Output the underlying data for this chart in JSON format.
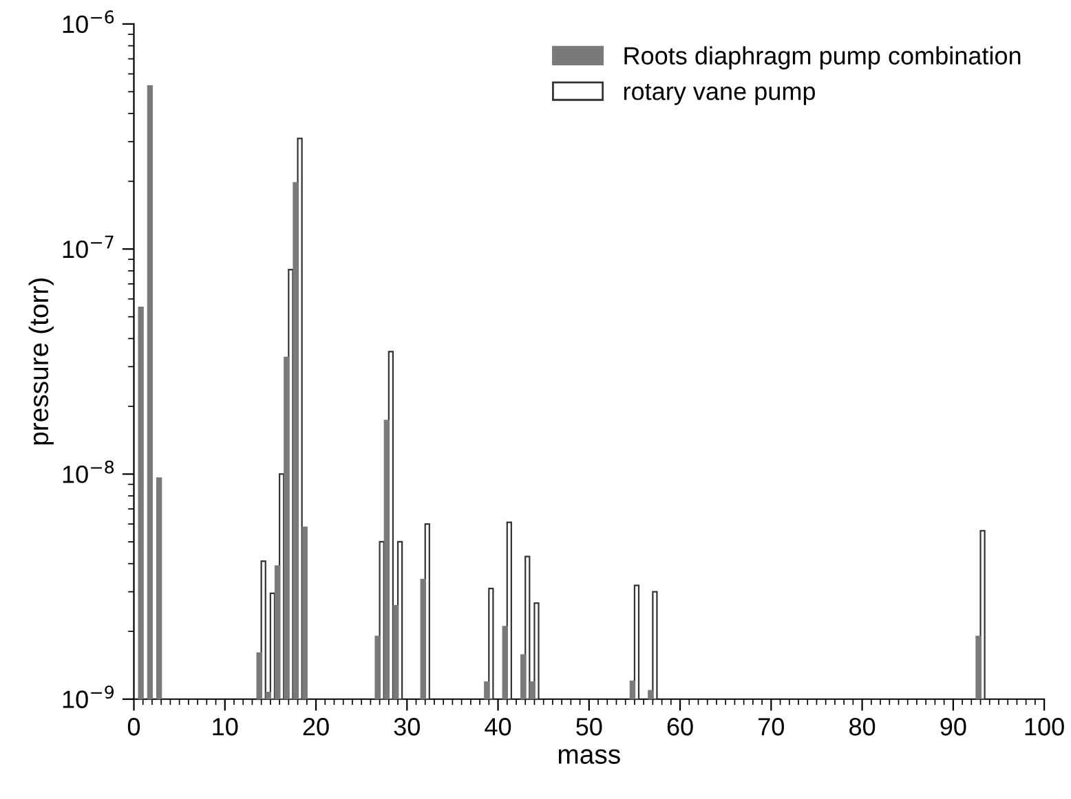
{
  "chart_data": {
    "type": "bar",
    "xlabel": "mass",
    "ylabel": "pressure (torr)",
    "log": "y",
    "legend": "top right",
    "grid": false,
    "x": [
      1,
      2,
      3,
      14,
      15,
      16,
      17,
      18,
      19,
      27,
      28,
      29,
      32,
      39,
      41,
      43,
      44,
      55,
      57,
      93
    ],
    "series": [
      {
        "name": "Roots diaphragm pump combination",
        "color": "#7a7a7a",
        "values": [
          5.5e-08,
          5.3e-07,
          9.6e-09,
          1.6e-09,
          1.07e-09,
          3.9e-09,
          3.3e-08,
          1.97e-07,
          5.8e-09,
          1.9e-09,
          1.73e-08,
          2.6e-09,
          3.4e-09,
          1.19e-09,
          2.1e-09,
          1.57e-09,
          1.19e-09,
          1.2e-09,
          1.09e-09,
          1.9e-09
        ]
      },
      {
        "name": "rotary vane pump",
        "color": "#ffffff",
        "values": [
          null,
          null,
          null,
          4.1e-09,
          2.95e-09,
          1e-08,
          8.1e-08,
          3.1e-07,
          null,
          5e-09,
          3.5e-08,
          5e-09,
          6e-09,
          3.1e-09,
          6.1e-09,
          4.3e-09,
          2.67e-09,
          3.2e-09,
          3e-09,
          5.6e-09
        ]
      }
    ],
    "xlim": [
      0,
      100
    ],
    "xticks": [
      0,
      10,
      20,
      30,
      40,
      50,
      60,
      70,
      80,
      90,
      100
    ],
    "ylim": [
      1e-09,
      1e-06
    ],
    "yticks": [
      {
        "value": 1e-09,
        "label": "10$^{−9}$"
      },
      {
        "value": 1e-08,
        "label": "10$^{−8}$"
      },
      {
        "value": 1e-07,
        "label": "10$^{−7}$"
      },
      {
        "value": 1e-06,
        "label": "10$^{−6}$"
      }
    ]
  }
}
